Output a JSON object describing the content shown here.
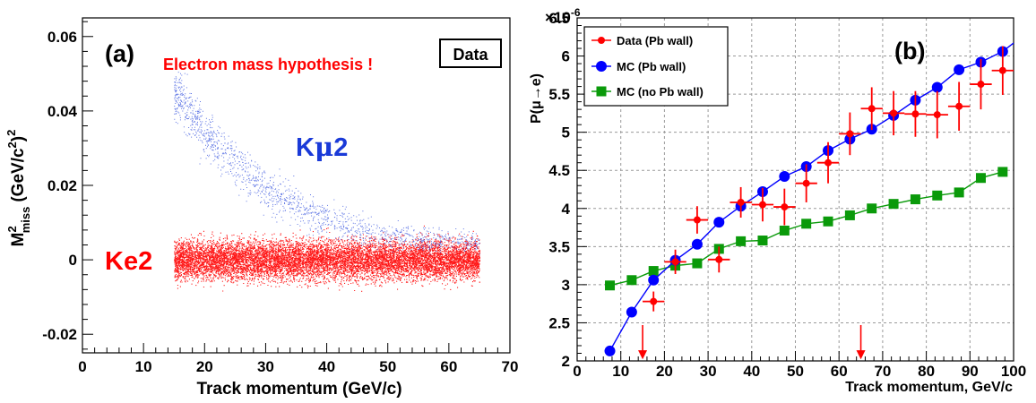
{
  "colors": {
    "data": "#ff0000",
    "mc_pb": "#0000ff",
    "mc_nopb": "#0a9a0a",
    "kmu2_band": "#1a3ad8",
    "ke2_band": "#ff0000",
    "text_red": "#ff0000",
    "text_blue": "#1a3ad8",
    "grid": "#9a9a9a"
  },
  "chart_data": [
    {
      "type": "scatter",
      "panel_label": "(a)",
      "box_label": "Data",
      "annotation": "Electron mass hypothesis !",
      "xlabel": "Track momentum (GeV/c)",
      "ylabel_main": "M",
      "ylabel_sup": "2",
      "ylabel_sub": "miss",
      "ylabel_paren": "(GeV/c",
      "ylabel_paren_sup": "2",
      "ylabel_paren_close": ")",
      "ylabel_outer_sup": "2",
      "xlim": [
        0,
        70
      ],
      "ylim": [
        -0.025,
        0.065
      ],
      "xticks": [
        "0",
        "10",
        "20",
        "30",
        "40",
        "50",
        "60",
        "70"
      ],
      "yticks": [
        "-0.02",
        "0",
        "0.02",
        "0.04",
        "0.06"
      ],
      "grid": false,
      "populations": [
        {
          "label_main": "K",
          "label_greek": "μ",
          "label_num": "2",
          "description": "band falling from about 0.045 at 15 GeV/c to about 0.005 at 65 GeV/c",
          "x_range": [
            15,
            65
          ],
          "y_top": 0.051,
          "center": [
            [
              15,
              0.045
            ],
            [
              20,
              0.034
            ],
            [
              25,
              0.026
            ],
            [
              30,
              0.019
            ],
            [
              35,
              0.014
            ],
            [
              40,
              0.011
            ],
            [
              45,
              0.008
            ],
            [
              50,
              0.0065
            ],
            [
              55,
              0.0055
            ],
            [
              60,
              0.005
            ],
            [
              65,
              0.0045
            ]
          ]
        },
        {
          "label": "Ke2",
          "description": "flat band centered at 0 spanning about -0.01 to 0.012 between 15 and 65 GeV/c",
          "x_range": [
            15,
            65
          ],
          "y_center": 0.0,
          "y_span": [
            -0.011,
            0.0125
          ]
        }
      ]
    },
    {
      "type": "line",
      "panel_label": "(b)",
      "exponent_label": "×10",
      "exponent_power": "-6",
      "ylabel": "P(μ→e)",
      "xlabel": "Track momentum, GeV/c",
      "xlim": [
        0,
        100
      ],
      "ylim": [
        2,
        6.5
      ],
      "xticks": [
        "0",
        "10",
        "20",
        "30",
        "40",
        "50",
        "60",
        "70",
        "80",
        "90",
        "100"
      ],
      "yticks": [
        "2",
        "2.5",
        "3",
        "3.5",
        "4",
        "4.5",
        "5",
        "5.5",
        "6",
        "6.5"
      ],
      "grid": true,
      "legend_position": "top-left",
      "arrows_x": [
        15,
        65
      ],
      "series": [
        {
          "name": "Data (Pb wall)",
          "marker": "circle",
          "x": [
            17.5,
            22.5,
            27.5,
            32.5,
            37.5,
            42.5,
            47.5,
            52.5,
            57.5,
            62.5,
            67.5,
            72.5,
            77.5,
            82.5,
            87.5,
            92.5,
            97.5
          ],
          "y": [
            2.78,
            3.3,
            3.85,
            3.33,
            4.08,
            4.05,
            4.02,
            4.33,
            4.6,
            4.98,
            5.31,
            5.25,
            5.24,
            5.23,
            5.34,
            5.63,
            5.81
          ],
          "yerr": [
            0.13,
            0.16,
            0.18,
            0.17,
            0.2,
            0.22,
            0.24,
            0.25,
            0.27,
            0.28,
            0.28,
            0.29,
            0.3,
            0.31,
            0.32,
            0.33,
            0.32
          ]
        },
        {
          "name": "MC (Pb wall)",
          "marker": "circle",
          "x": [
            7.5,
            12.5,
            17.5,
            22.5,
            27.5,
            32.5,
            37.5,
            42.5,
            47.5,
            52.5,
            57.5,
            62.5,
            67.5,
            72.5,
            77.5,
            82.5,
            87.5,
            92.5,
            97.5
          ],
          "y": [
            2.13,
            2.64,
            3.06,
            3.32,
            3.53,
            3.82,
            4.03,
            4.22,
            4.42,
            4.55,
            4.76,
            4.91,
            5.04,
            5.22,
            5.42,
            5.59,
            5.82,
            5.92,
            6.06
          ],
          "curve_end": [
            100,
            6.17
          ]
        },
        {
          "name": "MC (no Pb wall)",
          "marker": "square",
          "x": [
            7.5,
            12.5,
            17.5,
            22.5,
            27.5,
            32.5,
            37.5,
            42.5,
            47.5,
            52.5,
            57.5,
            62.5,
            67.5,
            72.5,
            77.5,
            82.5,
            87.5,
            92.5,
            97.5
          ],
          "y": [
            2.99,
            3.06,
            3.18,
            3.25,
            3.28,
            3.47,
            3.57,
            3.58,
            3.71,
            3.8,
            3.83,
            3.91,
            4.0,
            4.06,
            4.12,
            4.17,
            4.21,
            4.4,
            4.48
          ]
        }
      ]
    }
  ]
}
